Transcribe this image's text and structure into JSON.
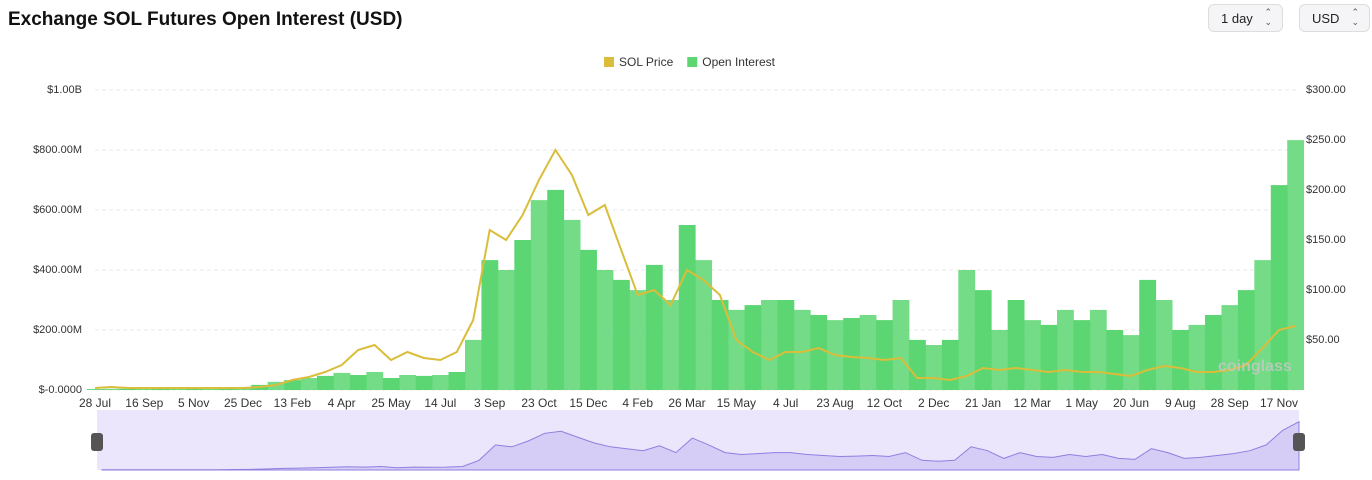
{
  "controls": {
    "interval": "1 day",
    "currency": "USD"
  },
  "chart_data": {
    "type": "bar",
    "title": "Exchange SOL Futures Open Interest (USD)",
    "watermark": "coinglass",
    "categories": [
      "28 Jul",
      null,
      null,
      "16 Sep",
      null,
      null,
      "5 Nov",
      null,
      null,
      "25 Dec",
      null,
      null,
      "13 Feb",
      null,
      null,
      "4 Apr",
      null,
      null,
      "25 May",
      null,
      null,
      "14 Jul",
      null,
      null,
      "3 Sep",
      null,
      null,
      "23 Oct",
      null,
      null,
      "15 Dec",
      null,
      null,
      "4 Feb",
      null,
      null,
      "26 Mar",
      null,
      null,
      "15 May",
      null,
      null,
      "4 Jul",
      null,
      null,
      "23 Aug",
      null,
      null,
      "12 Oct",
      null,
      null,
      "2 Dec",
      null,
      null,
      "21 Jan",
      null,
      null,
      "12 Mar",
      null,
      null,
      "1 May",
      null,
      null,
      "20 Jun",
      null,
      null,
      "9 Aug",
      null,
      null,
      "28 Sep",
      null,
      null,
      "17 Nov",
      null
    ],
    "series": [
      {
        "name": "SOL Price",
        "type": "line",
        "axis": "y2",
        "color": "#d9bd3b",
        "values": [
          2,
          3,
          2,
          2,
          2,
          2,
          2,
          2,
          2,
          2,
          3,
          5,
          10,
          13,
          18,
          25,
          40,
          45,
          30,
          38,
          32,
          30,
          38,
          70,
          160,
          150,
          175,
          210,
          240,
          215,
          175,
          185,
          140,
          95,
          100,
          85,
          120,
          110,
          95,
          50,
          38,
          30,
          38,
          38,
          42,
          35,
          33,
          32,
          30,
          32,
          12,
          12,
          10,
          14,
          22,
          20,
          22,
          20,
          18,
          20,
          18,
          18,
          16,
          14,
          20,
          24,
          22,
          18,
          18,
          20,
          25,
          42,
          60,
          64
        ]
      },
      {
        "name": "Open Interest",
        "type": "bar",
        "color": "#5cd672",
        "values": [
          3000000.0,
          4000000.0,
          4000000.0,
          4000000.0,
          4000000.0,
          5000000.0,
          5000000.0,
          6000000.0,
          8000000.0,
          10000000.0,
          17000000.0,
          27000000.0,
          33000000.0,
          40000000.0,
          47000000.0,
          57000000.0,
          50000000.0,
          60000000.0,
          40000000.0,
          50000000.0,
          47000000.0,
          50000000.0,
          60000000.0,
          167000000.0,
          433000000.0,
          400000000.0,
          500000000.0,
          633000000.0,
          667000000.0,
          567000000.0,
          467000000.0,
          400000000.0,
          367000000.0,
          333000000.0,
          417000000.0,
          300000000.0,
          550000000.0,
          433000000.0,
          300000000.0,
          267000000.0,
          283000000.0,
          300000000.0,
          300000000.0,
          267000000.0,
          250000000.0,
          233000000.0,
          240000000.0,
          250000000.0,
          233000000.0,
          300000000.0,
          167000000.0,
          150000000.0,
          167000000.0,
          400000000.0,
          333000000.0,
          200000000.0,
          300000000.0,
          233000000.0,
          217000000.0,
          267000000.0,
          233000000.0,
          267000000.0,
          200000000.0,
          183000000.0,
          367000000.0,
          300000000.0,
          200000000.0,
          217000000.0,
          250000000.0,
          283000000.0,
          333000000.0,
          433000000.0,
          683000000.0,
          833000000.0
        ]
      }
    ],
    "ylim": [
      0,
      1000000000.0
    ],
    "yticks": [
      {
        "value": 0,
        "label": "$-0.0000"
      },
      {
        "value": 200000000.0,
        "label": "$200.00M"
      },
      {
        "value": 400000000.0,
        "label": "$400.00M"
      },
      {
        "value": 600000000.0,
        "label": "$600.00M"
      },
      {
        "value": 800000000.0,
        "label": "$800.00M"
      },
      {
        "value": 1000000000.0,
        "label": "$1.00B"
      }
    ],
    "y2lim": [
      0,
      300
    ],
    "y2ticks": [
      {
        "value": 50,
        "label": "$50.00"
      },
      {
        "value": 100,
        "label": "$100.00"
      },
      {
        "value": 150,
        "label": "$150.00"
      },
      {
        "value": 200,
        "label": "$200.00"
      },
      {
        "value": 250,
        "label": "$250.00"
      },
      {
        "value": 300,
        "label": "$300.00"
      }
    ],
    "grid": true,
    "legend": "top"
  }
}
